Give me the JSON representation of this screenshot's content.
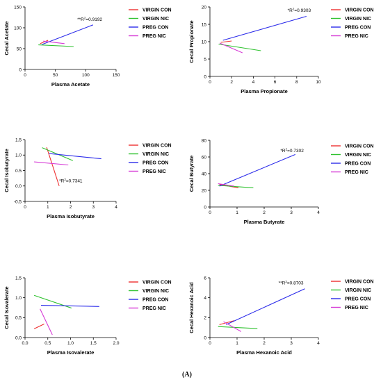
{
  "figure": {
    "panel_label": "(A)"
  },
  "colors": {
    "VIRGIN CON": "#ee2f2f",
    "VIRGIN NIC": "#2fc22f",
    "PREG CON": "#2b2bea",
    "PREG NIC": "#d63bd6"
  },
  "chart_data": [
    {
      "type": "line",
      "xlabel": "Plasma Acetate",
      "ylabel": "Cecal Acetate",
      "xlim": [
        0,
        150
      ],
      "ylim": [
        0,
        150
      ],
      "xticks": [
        0,
        50,
        100,
        150
      ],
      "yticks": [
        0,
        50,
        100,
        150
      ],
      "xtick_labels": [
        "0",
        "50",
        "100",
        "150"
      ],
      "ytick_labels": [
        "0",
        "50",
        "100",
        "150"
      ],
      "annotation": {
        "prefix": "**R",
        "sup": "2",
        "suffix": "=0.9192",
        "x": 86,
        "y": 117,
        "anchor": "start"
      },
      "series": [
        {
          "name": "VIRGIN CON",
          "x": [
            25,
            38
          ],
          "y": [
            62,
            70
          ]
        },
        {
          "name": "VIRGIN NIC",
          "x": [
            22,
            80
          ],
          "y": [
            59,
            55
          ]
        },
        {
          "name": "PREG CON",
          "x": [
            28,
            112
          ],
          "y": [
            60,
            107
          ]
        },
        {
          "name": "PREG NIC",
          "x": [
            30,
            65
          ],
          "y": [
            68,
            62
          ]
        }
      ],
      "legend": [
        "VIRGIN CON",
        "VIRGIN NIC",
        "PREG CON",
        "PREG NIC"
      ]
    },
    {
      "type": "line",
      "xlabel": "Plasma Propionate",
      "ylabel": "Cecal Propionate",
      "xlim": [
        0,
        10
      ],
      "ylim": [
        0,
        20
      ],
      "xticks": [
        0,
        2,
        4,
        6,
        8,
        10
      ],
      "yticks": [
        0,
        5,
        10,
        15,
        20
      ],
      "xtick_labels": [
        "0",
        "2",
        "4",
        "6",
        "8",
        "10"
      ],
      "ytick_labels": [
        "0",
        "5",
        "10",
        "15",
        "20"
      ],
      "annotation": {
        "prefix": "*R",
        "sup": "2",
        "suffix": "=0.9303",
        "x": 9.3,
        "y": 18.6,
        "anchor": "end"
      },
      "series": [
        {
          "name": "VIRGIN CON",
          "x": [
            1.0,
            2.0
          ],
          "y": [
            9.8,
            10.2
          ]
        },
        {
          "name": "VIRGIN NIC",
          "x": [
            0.8,
            4.7
          ],
          "y": [
            9.3,
            7.4
          ]
        },
        {
          "name": "PREG CON",
          "x": [
            1.2,
            8.9
          ],
          "y": [
            10.4,
            17.3
          ]
        },
        {
          "name": "PREG NIC",
          "x": [
            0.9,
            3.0
          ],
          "y": [
            9.6,
            6.8
          ]
        }
      ],
      "legend": [
        "VIRGIN CON",
        "VIRGIN NIC",
        "PREG CON",
        "PREG NIC"
      ]
    },
    {
      "type": "line",
      "xlabel": "Plasma Isobutyrate",
      "ylabel": "Cecal Isobutyrate",
      "xlim": [
        0,
        4
      ],
      "ylim": [
        -0.5,
        1.5
      ],
      "xticks": [
        0,
        1,
        2,
        3,
        4
      ],
      "yticks": [
        -0.5,
        0,
        0.5,
        1.0,
        1.5
      ],
      "xtick_labels": [
        "0",
        "1",
        "2",
        "3",
        "4"
      ],
      "ytick_labels": [
        "-0.5",
        "0.0",
        "0.5",
        "1.0",
        "1.5"
      ],
      "annotation": {
        "prefix": "*R",
        "sup": "2",
        "suffix": "=0.7341",
        "x": 1.5,
        "y": 0.12,
        "anchor": "start"
      },
      "series": [
        {
          "name": "VIRGIN CON",
          "x": [
            0.95,
            1.5
          ],
          "y": [
            1.25,
            0.0
          ]
        },
        {
          "name": "VIRGIN NIC",
          "x": [
            0.75,
            2.1
          ],
          "y": [
            1.24,
            0.82
          ]
        },
        {
          "name": "PREG CON",
          "x": [
            1.05,
            3.35
          ],
          "y": [
            1.05,
            0.88
          ]
        },
        {
          "name": "PREG NIC",
          "x": [
            0.4,
            1.9
          ],
          "y": [
            0.78,
            0.68
          ]
        }
      ],
      "legend": [
        "VIRGIN CON",
        "VIRGIN NIC",
        "PREG CON",
        "PREG NIC"
      ]
    },
    {
      "type": "line",
      "xlabel": "Plasma Butyrate",
      "ylabel": "Cecal Butyrate",
      "xlim": [
        0,
        4
      ],
      "ylim": [
        0,
        80
      ],
      "xticks": [
        0,
        1,
        2,
        3,
        4
      ],
      "yticks": [
        0,
        20,
        40,
        60,
        80
      ],
      "xtick_labels": [
        "0",
        "1",
        "2",
        "3",
        "4"
      ],
      "ytick_labels": [
        "0",
        "20",
        "40",
        "60",
        "80"
      ],
      "annotation": {
        "prefix": "*R",
        "sup": "2",
        "suffix": "=0.7302",
        "x": 2.6,
        "y": 66,
        "anchor": "start"
      },
      "series": [
        {
          "name": "VIRGIN CON",
          "x": [
            0.35,
            1.05
          ],
          "y": [
            27,
            23
          ]
        },
        {
          "name": "VIRGIN NIC",
          "x": [
            0.3,
            1.6
          ],
          "y": [
            26,
            23
          ]
        },
        {
          "name": "PREG CON",
          "x": [
            0.35,
            3.15
          ],
          "y": [
            25,
            63
          ]
        },
        {
          "name": "PREG NIC",
          "x": [
            0.3,
            0.9
          ],
          "y": [
            28,
            25
          ]
        }
      ],
      "legend": [
        "VIRGIN CON",
        "VIRGIN NIC",
        "PREG CON",
        "PREG NIC"
      ]
    },
    {
      "type": "line",
      "xlabel": "Plasma Isovalerate",
      "ylabel": "Cecal Isovalerate",
      "xlim": [
        0,
        2.0
      ],
      "ylim": [
        0,
        1.5
      ],
      "xticks": [
        0,
        0.5,
        1.0,
        1.5,
        2.0
      ],
      "yticks": [
        0,
        0.5,
        1.0,
        1.5
      ],
      "xtick_labels": [
        "0.0",
        "0.5",
        "1.0",
        "1.5",
        "2.0"
      ],
      "ytick_labels": [
        "0.0",
        "0.5",
        "1.0",
        "1.5"
      ],
      "annotation": null,
      "series": [
        {
          "name": "VIRGIN CON",
          "x": [
            0.2,
            0.42
          ],
          "y": [
            0.22,
            0.34
          ]
        },
        {
          "name": "VIRGIN NIC",
          "x": [
            0.2,
            1.02
          ],
          "y": [
            1.06,
            0.74
          ]
        },
        {
          "name": "PREG CON",
          "x": [
            0.35,
            1.63
          ],
          "y": [
            0.81,
            0.78
          ]
        },
        {
          "name": "PREG NIC",
          "x": [
            0.33,
            0.6
          ],
          "y": [
            0.72,
            0.07
          ]
        }
      ],
      "legend": [
        "VIRGIN CON",
        "VIRGIN NIC",
        "PREG CON",
        "PREG NIC"
      ]
    },
    {
      "type": "line",
      "xlabel": "Plasma Hexanoic Acid",
      "ylabel": "Cecal Hexanoic Acid",
      "xlim": [
        0,
        4
      ],
      "ylim": [
        0,
        6
      ],
      "xticks": [
        0,
        1,
        2,
        3,
        4
      ],
      "yticks": [
        0,
        2,
        4,
        6
      ],
      "xtick_labels": [
        "0",
        "1",
        "2",
        "3",
        "4"
      ],
      "ytick_labels": [
        "0",
        "2",
        "4",
        "6"
      ],
      "annotation": {
        "prefix": "**R",
        "sup": "2",
        "suffix": "=0.8703",
        "x": 3.45,
        "y": 5.35,
        "anchor": "end"
      },
      "series": [
        {
          "name": "VIRGIN CON",
          "x": [
            0.35,
            0.9
          ],
          "y": [
            1.3,
            1.7
          ]
        },
        {
          "name": "VIRGIN NIC",
          "x": [
            0.3,
            1.75
          ],
          "y": [
            1.1,
            0.9
          ]
        },
        {
          "name": "PREG CON",
          "x": [
            0.6,
            3.5
          ],
          "y": [
            1.3,
            4.9
          ]
        },
        {
          "name": "PREG NIC",
          "x": [
            0.5,
            1.15
          ],
          "y": [
            1.6,
            0.6
          ]
        }
      ],
      "legend": [
        "VIRGIN CON",
        "VIRGIN NIC",
        "PREG CON",
        "PREG NIC"
      ]
    }
  ]
}
